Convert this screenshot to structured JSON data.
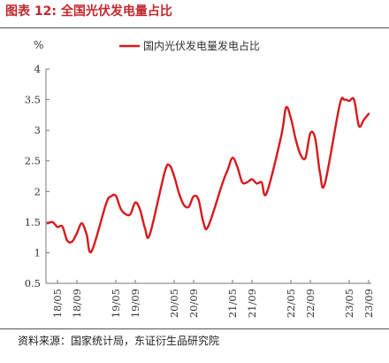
{
  "figure": {
    "title": "图表 12: 全国光伏发电量占比",
    "source": "资料来源：国家统计局，东证衍生品研究院"
  },
  "colors": {
    "title": "#c0282d",
    "series": "#d7191c",
    "axis": "#777777",
    "text": "#333333"
  },
  "chart_data": {
    "type": "line",
    "title": "",
    "xlabel": "",
    "ylabel": "%",
    "ylim": [
      0.5,
      4
    ],
    "yticks": [
      0.5,
      1,
      1.5,
      2,
      2.5,
      3,
      3.5,
      4
    ],
    "ytick_labels": [
      "0.5",
      "1",
      "1.5",
      "2",
      "2.5",
      "3",
      "3.5",
      "4"
    ],
    "x_ticks": [
      "18/05",
      "18/09",
      "19/05",
      "19/09",
      "20/05",
      "20/09",
      "21/05",
      "21/09",
      "22/05",
      "22/09",
      "23/05",
      "23/09"
    ],
    "legend_position": "top-center",
    "grid": false,
    "series": [
      {
        "name": "国内光伏发电量发电占比",
        "x": [
          "18/03",
          "18/04",
          "18/05",
          "18/06",
          "18/07",
          "18/08",
          "18/09",
          "18/10",
          "18/11",
          "18/12",
          "19/03",
          "19/04",
          "19/05",
          "19/06",
          "19/07",
          "19/08",
          "19/09",
          "19/10",
          "19/11",
          "19/12",
          "20/03",
          "20/04",
          "20/05",
          "20/06",
          "20/07",
          "20/08",
          "20/09",
          "20/10",
          "20/11",
          "20/12",
          "21/03",
          "21/04",
          "21/05",
          "21/06",
          "21/07",
          "21/08",
          "21/09",
          "21/10",
          "21/11",
          "21/12",
          "22/03",
          "22/04",
          "22/05",
          "22/06",
          "22/07",
          "22/08",
          "22/09",
          "22/10",
          "22/11",
          "22/12",
          "23/03",
          "23/04",
          "23/05",
          "23/06",
          "23/07",
          "23/08",
          "23/09"
        ],
        "values": [
          1.48,
          1.5,
          1.42,
          1.43,
          1.2,
          1.18,
          1.32,
          1.48,
          1.3,
          1.02,
          1.8,
          1.92,
          1.93,
          1.72,
          1.63,
          1.63,
          1.82,
          1.7,
          1.4,
          1.3,
          2.3,
          2.43,
          2.25,
          1.97,
          1.78,
          1.75,
          1.92,
          1.87,
          1.5,
          1.43,
          2.15,
          2.35,
          2.55,
          2.4,
          2.15,
          2.15,
          2.2,
          2.13,
          2.15,
          1.97,
          2.9,
          3.37,
          3.2,
          2.85,
          2.6,
          2.55,
          2.95,
          2.87,
          2.3,
          2.13,
          3.4,
          3.5,
          3.48,
          3.5,
          3.07,
          3.17,
          3.27
        ]
      }
    ]
  }
}
